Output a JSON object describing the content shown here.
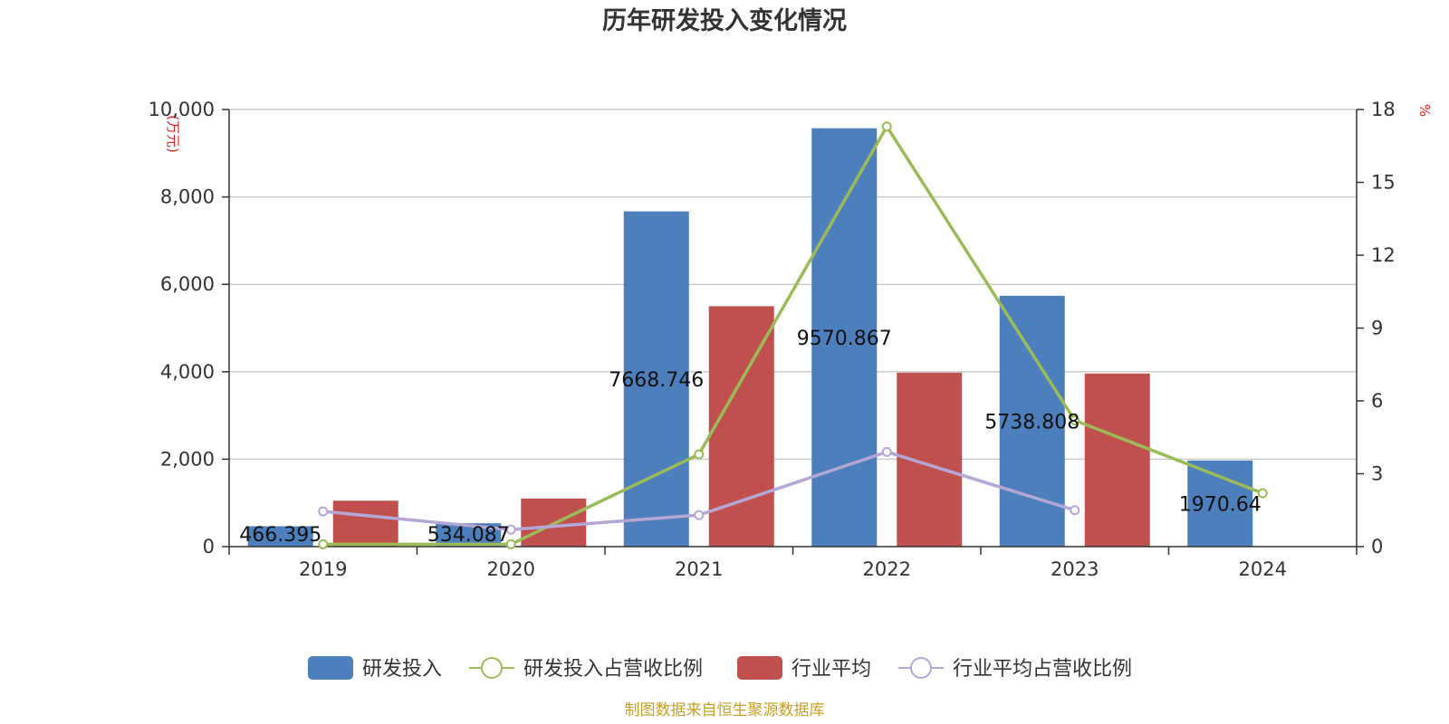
{
  "chart_data": {
    "type": "bar",
    "title": "历年研发投入变化情况",
    "categories": [
      "2019",
      "2020",
      "2021",
      "2022",
      "2023",
      "2024"
    ],
    "y_left": {
      "unit_label": "(万元)",
      "range": [
        0,
        10000
      ],
      "ticks": [
        "0",
        "2,000",
        "4,000",
        "6,000",
        "8,000",
        "10,000"
      ],
      "tick_values": [
        0,
        2000,
        4000,
        6000,
        8000,
        10000
      ]
    },
    "y_right": {
      "unit_label": "%",
      "range": [
        0,
        18
      ],
      "ticks": [
        "0",
        "3",
        "6",
        "9",
        "12",
        "15",
        "18"
      ],
      "tick_values": [
        0,
        3,
        6,
        9,
        12,
        15,
        18
      ]
    },
    "grid": true,
    "legend_position": "bottom",
    "series": [
      {
        "name": "研发投入",
        "type": "bar",
        "axis": "left",
        "color": "#4e7fbd",
        "values": [
          466.395,
          534.087,
          7668.746,
          9570.867,
          5738.808,
          1970.64
        ],
        "labels": [
          "466.395",
          "534.087",
          "7668.746",
          "9570.867",
          "5738.808",
          "1970.64"
        ]
      },
      {
        "name": "研发投入占营收比例",
        "type": "line",
        "axis": "right",
        "color": "#9bbb59",
        "values": [
          0.1,
          0.1,
          3.8,
          17.3,
          5.2,
          2.2
        ]
      },
      {
        "name": "行业平均",
        "type": "bar",
        "axis": "left",
        "color": "#c0504d",
        "values": [
          1050,
          1100,
          5500,
          3980,
          3960,
          null
        ]
      },
      {
        "name": "行业平均占营收比例",
        "type": "line",
        "axis": "right",
        "color": "#b4a7d6",
        "values": [
          1.45,
          0.7,
          1.3,
          3.9,
          1.5,
          null
        ]
      }
    ],
    "source_text": "制图数据来自恒生聚源数据库",
    "source_color": "#c8a028"
  }
}
